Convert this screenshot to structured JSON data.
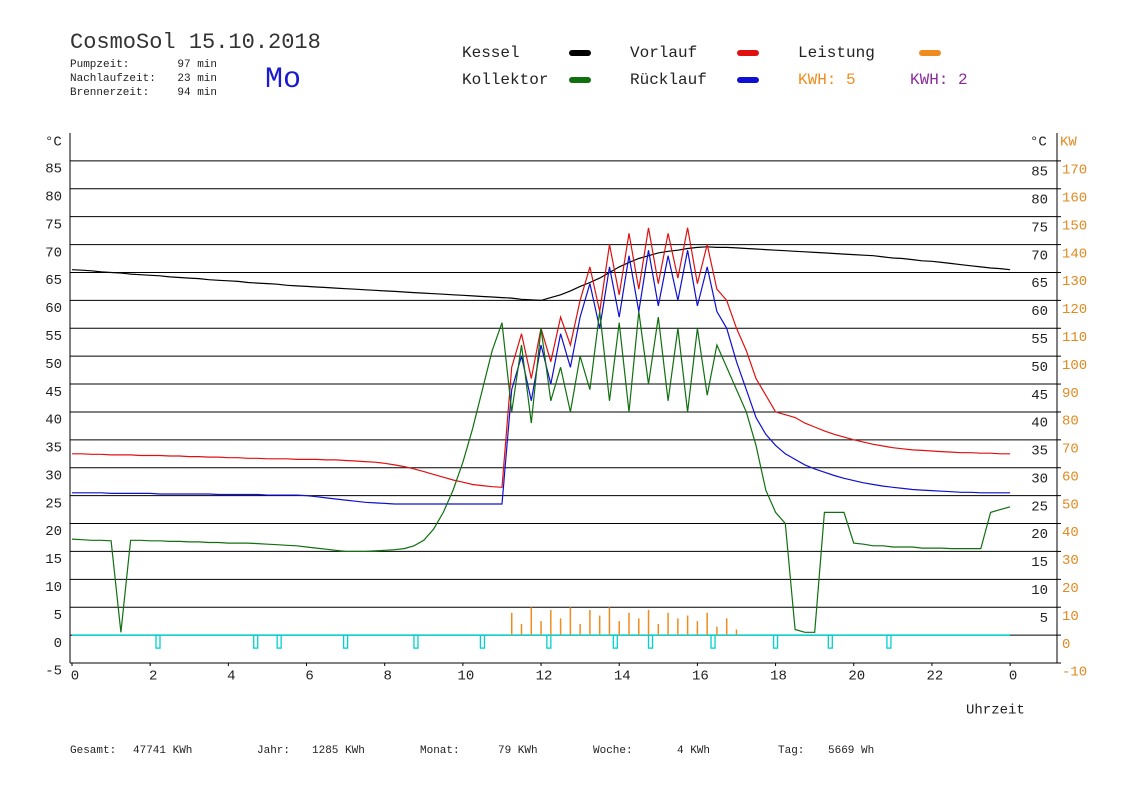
{
  "chart_data": {
    "type": "line",
    "title": "CosmoSol 15.10.2018",
    "weekday": "Mo",
    "info": [
      {
        "label": "Pumpzeit:",
        "value": "97 min"
      },
      {
        "label": "Nachlaufzeit:",
        "value": "23 min"
      },
      {
        "label": "Brennerzeit:",
        "value": "94 min"
      }
    ],
    "kwh_labels": [
      {
        "text": "KWH: 5",
        "color": "#f08c1e"
      },
      {
        "text": "KWH: 2",
        "color": "#8b2c9c"
      }
    ],
    "units": {
      "left": "°C",
      "right": "°C",
      "y2": "KW"
    },
    "x_label": "Uhrzeit",
    "xlim": [
      0,
      25.2
    ],
    "xticks": [
      0,
      2,
      4,
      6,
      8,
      10,
      12,
      14,
      16,
      18,
      20,
      22,
      {
        "value": 24,
        "label": "0"
      }
    ],
    "ylim": [
      -5,
      90
    ],
    "yticks": [
      -5,
      0,
      5,
      10,
      15,
      20,
      25,
      30,
      35,
      40,
      45,
      50,
      55,
      60,
      65,
      70,
      75,
      80,
      85
    ],
    "yticks_right": [
      5,
      10,
      15,
      20,
      25,
      30,
      35,
      40,
      45,
      50,
      55,
      60,
      65,
      70,
      75,
      80,
      85
    ],
    "y2lim": [
      -10,
      180
    ],
    "y2ticks": [
      -10,
      0,
      10,
      20,
      30,
      40,
      50,
      60,
      70,
      80,
      90,
      100,
      110,
      120,
      130,
      140,
      150,
      160,
      170
    ],
    "grid": true,
    "x": [
      0,
      0.25,
      0.5,
      0.75,
      1,
      1.25,
      1.5,
      1.75,
      2,
      2.25,
      2.5,
      2.75,
      3,
      3.25,
      3.5,
      3.75,
      4,
      4.25,
      4.5,
      4.75,
      5,
      5.25,
      5.5,
      5.75,
      6,
      6.25,
      6.5,
      6.75,
      7,
      7.25,
      7.5,
      7.75,
      8,
      8.25,
      8.5,
      8.75,
      9,
      9.25,
      9.5,
      9.75,
      10,
      10.25,
      10.5,
      10.75,
      11,
      11.25,
      11.5,
      11.75,
      12,
      12.25,
      12.5,
      12.75,
      13,
      13.25,
      13.5,
      13.75,
      14,
      14.25,
      14.5,
      14.75,
      15,
      15.25,
      15.5,
      15.75,
      16,
      16.25,
      16.5,
      16.75,
      17,
      17.25,
      17.5,
      17.75,
      18,
      18.25,
      18.5,
      18.75,
      19,
      19.25,
      19.5,
      19.75,
      20,
      20.25,
      20.5,
      20.75,
      21,
      21.25,
      21.5,
      21.75,
      22,
      22.25,
      22.5,
      22.75,
      23,
      23.25,
      23.5,
      23.75,
      24
    ],
    "series": [
      {
        "name": "Kessel",
        "color": "#000000",
        "values": [
          65.5,
          65.4,
          65.3,
          65.1,
          65,
          64.9,
          64.7,
          64.6,
          64.5,
          64.4,
          64.2,
          64.1,
          64,
          63.9,
          63.7,
          63.6,
          63.5,
          63.4,
          63.2,
          63.1,
          63,
          62.9,
          62.7,
          62.6,
          62.5,
          62.4,
          62.3,
          62.2,
          62.1,
          62,
          61.9,
          61.8,
          61.7,
          61.6,
          61.5,
          61.4,
          61.3,
          61.2,
          61.1,
          61,
          60.9,
          60.8,
          60.7,
          60.6,
          60.5,
          60.4,
          60.2,
          60.1,
          60,
          60.5,
          61,
          61.7,
          62.5,
          63.2,
          64,
          65,
          66,
          66.8,
          67.5,
          68,
          68.5,
          68.8,
          69,
          69.3,
          69.5,
          69.6,
          69.5,
          69.5,
          69.4,
          69.3,
          69.2,
          69.1,
          69,
          68.9,
          68.8,
          68.7,
          68.6,
          68.5,
          68.4,
          68.3,
          68.2,
          68.1,
          68,
          67.8,
          67.6,
          67.5,
          67.3,
          67.1,
          67,
          66.8,
          66.6,
          66.4,
          66.2,
          66,
          65.8,
          65.7,
          65.5
        ]
      },
      {
        "name": "Kollektor",
        "color": "#107010",
        "values": [
          17.2,
          17.1,
          17,
          17,
          16.9,
          0.5,
          17,
          17,
          16.9,
          16.9,
          16.8,
          16.8,
          16.7,
          16.7,
          16.6,
          16.6,
          16.5,
          16.5,
          16.5,
          16.4,
          16.3,
          16.2,
          16.1,
          16,
          15.8,
          15.6,
          15.4,
          15.2,
          15,
          15,
          15,
          15.1,
          15.2,
          15.3,
          15.5,
          16,
          17,
          19,
          22,
          26,
          31,
          37,
          44,
          51,
          56,
          40,
          52,
          38,
          55,
          42,
          48,
          40,
          50,
          44,
          58,
          42,
          56,
          40,
          58,
          45,
          57,
          42,
          55,
          40,
          55,
          43,
          52,
          48,
          44,
          40,
          34,
          26,
          22,
          20,
          1,
          0.5,
          0.5,
          22,
          22,
          22,
          16.5,
          16.3,
          16,
          16,
          15.8,
          15.8,
          15.8,
          15.6,
          15.6,
          15.6,
          15.5,
          15.5,
          15.5,
          15.5,
          22,
          22.5,
          23
        ]
      },
      {
        "name": "Vorlauf",
        "color": "#e01010",
        "values": [
          32.5,
          32.5,
          32.4,
          32.4,
          32.3,
          32.3,
          32.3,
          32.2,
          32.2,
          32.2,
          32.1,
          32.1,
          32,
          32,
          31.9,
          31.9,
          31.8,
          31.8,
          31.7,
          31.7,
          31.6,
          31.6,
          31.6,
          31.5,
          31.5,
          31.5,
          31.4,
          31.4,
          31.3,
          31.2,
          31.1,
          31,
          30.8,
          30.5,
          30.2,
          29.8,
          29.3,
          28.8,
          28.3,
          27.8,
          27.4,
          27,
          26.8,
          26.6,
          26.5,
          48,
          54,
          46,
          55,
          49,
          57,
          52,
          60,
          66,
          58,
          70,
          61,
          72,
          62,
          73,
          63,
          72,
          64,
          73,
          63,
          70,
          62,
          60,
          55,
          51,
          46,
          43,
          40,
          39.5,
          39,
          38,
          37.3,
          36.6,
          36,
          35.5,
          35,
          34.6,
          34.2,
          33.9,
          33.6,
          33.4,
          33.2,
          33.1,
          33,
          32.9,
          32.8,
          32.7,
          32.7,
          32.6,
          32.6,
          32.5,
          32.5
        ]
      },
      {
        "name": "Rücklauf",
        "color": "#1010d0",
        "values": [
          25.5,
          25.5,
          25.5,
          25.5,
          25.4,
          25.4,
          25.4,
          25.4,
          25.4,
          25.3,
          25.3,
          25.3,
          25.3,
          25.3,
          25.3,
          25.2,
          25.2,
          25.2,
          25.2,
          25.2,
          25.1,
          25.1,
          25.1,
          25.1,
          25,
          24.8,
          24.6,
          24.4,
          24.2,
          24,
          23.8,
          23.7,
          23.6,
          23.5,
          23.5,
          23.5,
          23.5,
          23.5,
          23.5,
          23.5,
          23.5,
          23.5,
          23.5,
          23.5,
          23.5,
          44,
          50,
          42,
          52,
          45,
          54,
          48,
          57,
          63,
          55,
          66,
          57,
          68,
          58,
          69,
          59,
          68,
          60,
          69,
          59,
          66,
          58,
          55,
          49,
          44,
          39,
          36,
          34,
          32.5,
          31.5,
          30.5,
          29.8,
          29.2,
          28.6,
          28.1,
          27.7,
          27.3,
          27,
          26.7,
          26.5,
          26.3,
          26.1,
          26,
          25.9,
          25.8,
          25.7,
          25.6,
          25.6,
          25.5,
          25.5,
          25.5,
          25.5
        ]
      },
      {
        "name": "Leistung",
        "color": "#f08c1e",
        "axis": "y2",
        "values": [
          0,
          0,
          0,
          0,
          0,
          0,
          0,
          0,
          0,
          0,
          0,
          0,
          0,
          0,
          0,
          0,
          0,
          0,
          0,
          0,
          0,
          0,
          0,
          0,
          0,
          0,
          0,
          0,
          0,
          0,
          0,
          0,
          0,
          0,
          0,
          0,
          0,
          0,
          0,
          0,
          0,
          0,
          0,
          0,
          0,
          8,
          4,
          10,
          5,
          9,
          6,
          10,
          4,
          9,
          7,
          10,
          5,
          8,
          6,
          9,
          4,
          8,
          6,
          7,
          5,
          8,
          3,
          6,
          2,
          0,
          0,
          0,
          0,
          0,
          0,
          0,
          0,
          0,
          0,
          0,
          0,
          0,
          0,
          0,
          0,
          0,
          0,
          0,
          0,
          0,
          0,
          0,
          0,
          0,
          0,
          0,
          0
        ]
      }
    ],
    "pulses": {
      "color": "#00d0d0",
      "x": [
        2.2,
        4.7,
        5.3,
        7.0,
        8.8,
        10.5,
        12.2,
        13.9,
        14.8,
        16.4,
        18.0,
        19.4,
        20.9
      ]
    },
    "totals": [
      {
        "label": "Gesamt:",
        "value": "47741 KWh"
      },
      {
        "label": "Jahr:",
        "value": "1285 KWh"
      },
      {
        "label": "Monat:",
        "value": "79 KWh"
      },
      {
        "label": "Woche:",
        "value": "4 KWh"
      },
      {
        "label": "Tag:",
        "value": "5669 Wh"
      }
    ]
  }
}
